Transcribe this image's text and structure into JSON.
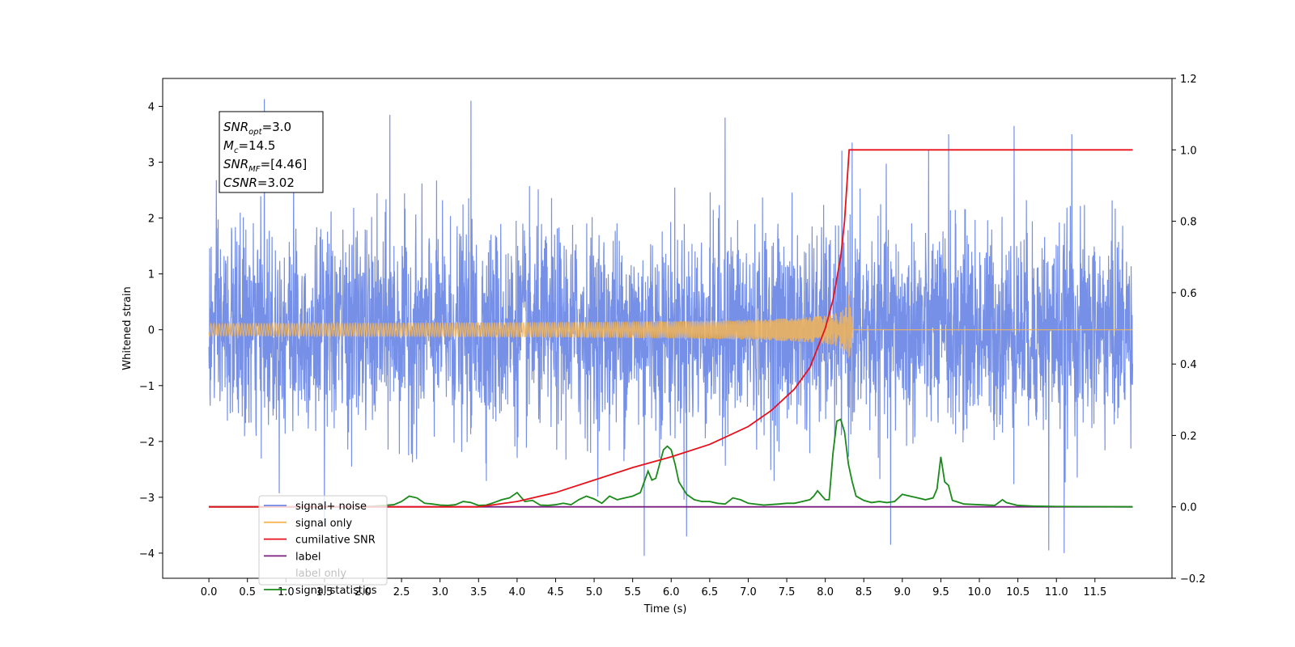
{
  "chart_data": {
    "type": "line",
    "xlabel": "Time (s)",
    "ylabel": "Whitened strain",
    "xlim": [
      -0.6,
      12.5
    ],
    "ylim": [
      -4.45,
      4.5
    ],
    "y2lim": [
      -0.2,
      1.2
    ],
    "grid": false,
    "legend_position": "lower-left",
    "x_ticks": [
      "0.0",
      "0.5",
      "1.0",
      "1.5",
      "2.0",
      "2.5",
      "3.0",
      "3.5",
      "4.0",
      "4.5",
      "5.0",
      "5.5",
      "6.0",
      "6.5",
      "7.0",
      "7.5",
      "8.0",
      "8.5",
      "9.0",
      "9.5",
      "10.0",
      "10.5",
      "11.0",
      "11.5"
    ],
    "y_ticks": [
      "4",
      "3",
      "2",
      "1",
      "0",
      "−1",
      "−2",
      "−3",
      "−4"
    ],
    "y2_ticks": [
      "1.2",
      "1.0",
      "0.8",
      "0.6",
      "0.4",
      "0.2",
      "0.0",
      "−0.2"
    ],
    "annotation": {
      "lines": [
        {
          "name": "SNR",
          "sub": "opt",
          "value": "=3.0"
        },
        {
          "name": "M",
          "sub": "c",
          "value": "=14.5"
        },
        {
          "name": "SNR",
          "sub": "MF",
          "value": "=[4.46]"
        },
        {
          "name": "CSNR",
          "sub": "",
          "value": "=3.02"
        }
      ]
    },
    "series": [
      {
        "name": "signal+ noise",
        "color": "#6f8ae6",
        "axis": "left",
        "kind": "noise",
        "x_start": 0.0,
        "x_end": 11.99,
        "amplitude_sigma": 1.0,
        "peaks": [
          [
            0.72,
            4.13
          ],
          [
            3.4,
            4.1
          ],
          [
            1.1,
            3.7
          ],
          [
            2.35,
            3.85
          ],
          [
            6.7,
            3.8
          ],
          [
            10.45,
            3.65
          ],
          [
            11.2,
            3.5
          ],
          [
            9.6,
            3.5
          ],
          [
            8.35,
            3.35
          ],
          [
            5.65,
            -4.05
          ],
          [
            10.9,
            -3.95
          ],
          [
            11.1,
            -4.0
          ],
          [
            8.85,
            -3.85
          ],
          [
            6.2,
            -3.7
          ],
          [
            1.5,
            -3.5
          ]
        ]
      },
      {
        "name": "signal only",
        "color": "#f5b556",
        "axis": "left",
        "kind": "chirp",
        "x_start": 0.0,
        "x_end": 11.99,
        "merger_time": 8.31,
        "peak_amplitude": 0.65
      },
      {
        "name": "cumilative SNR",
        "color": "#e8111b",
        "axis": "right",
        "x": [
          0.0,
          3.5,
          4.0,
          4.5,
          5.0,
          5.5,
          6.0,
          6.5,
          7.0,
          7.3,
          7.6,
          7.8,
          8.0,
          8.1,
          8.2,
          8.25,
          8.31,
          8.32,
          11.99
        ],
        "values": [
          0.0,
          0.0,
          0.015,
          0.04,
          0.075,
          0.11,
          0.14,
          0.175,
          0.225,
          0.27,
          0.33,
          0.39,
          0.5,
          0.58,
          0.7,
          0.8,
          1.0,
          1.0,
          1.0
        ]
      },
      {
        "name": "label",
        "color": "#7b1f7f",
        "axis": "right",
        "x": [
          0.0,
          11.99
        ],
        "values": [
          0.0,
          0.0
        ]
      },
      {
        "name": "label only",
        "color": "#4c72b0",
        "axis": "right",
        "hidden": true,
        "x": [],
        "values": []
      },
      {
        "name": "signal statistics",
        "color": "#1a8a1a",
        "axis": "right",
        "x": [
          0.0,
          2.0,
          2.2,
          2.4,
          2.5,
          2.6,
          2.7,
          2.8,
          2.9,
          3.0,
          3.1,
          3.2,
          3.3,
          3.4,
          3.5,
          3.6,
          3.7,
          3.8,
          3.9,
          4.0,
          4.1,
          4.2,
          4.3,
          4.4,
          4.5,
          4.6,
          4.7,
          4.8,
          4.9,
          5.0,
          5.1,
          5.2,
          5.3,
          5.4,
          5.5,
          5.6,
          5.7,
          5.75,
          5.8,
          5.9,
          5.95,
          6.0,
          6.05,
          6.1,
          6.2,
          6.3,
          6.4,
          6.5,
          6.6,
          6.7,
          6.8,
          6.9,
          7.0,
          7.2,
          7.4,
          7.5,
          7.6,
          7.7,
          7.8,
          7.85,
          7.9,
          8.0,
          8.05,
          8.1,
          8.15,
          8.2,
          8.25,
          8.3,
          8.35,
          8.4,
          8.5,
          8.6,
          8.7,
          8.8,
          8.9,
          9.0,
          9.1,
          9.2,
          9.3,
          9.4,
          9.45,
          9.5,
          9.55,
          9.6,
          9.65,
          9.7,
          9.8,
          10.0,
          10.2,
          10.3,
          10.35,
          10.5,
          10.7,
          11.0,
          11.99
        ],
        "values": [
          0.0,
          0.0,
          0.003,
          0.006,
          0.015,
          0.03,
          0.025,
          0.01,
          0.008,
          0.005,
          0.004,
          0.006,
          0.015,
          0.012,
          0.004,
          0.005,
          0.012,
          0.02,
          0.025,
          0.04,
          0.015,
          0.018,
          0.005,
          0.004,
          0.006,
          0.01,
          0.006,
          0.02,
          0.03,
          0.022,
          0.01,
          0.03,
          0.02,
          0.025,
          0.03,
          0.04,
          0.1,
          0.075,
          0.08,
          0.16,
          0.17,
          0.16,
          0.12,
          0.07,
          0.035,
          0.02,
          0.015,
          0.015,
          0.01,
          0.008,
          0.025,
          0.02,
          0.01,
          0.005,
          0.008,
          0.01,
          0.01,
          0.015,
          0.02,
          0.03,
          0.045,
          0.02,
          0.02,
          0.15,
          0.24,
          0.245,
          0.21,
          0.12,
          0.07,
          0.03,
          0.018,
          0.012,
          0.015,
          0.012,
          0.015,
          0.035,
          0.03,
          0.025,
          0.02,
          0.025,
          0.05,
          0.14,
          0.07,
          0.06,
          0.018,
          0.015,
          0.008,
          0.006,
          0.004,
          0.02,
          0.012,
          0.004,
          0.002,
          0.001,
          0.0
        ]
      }
    ]
  }
}
